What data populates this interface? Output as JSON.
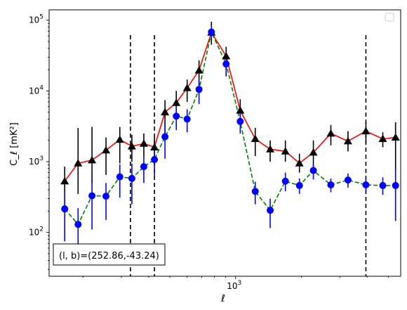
{
  "chart_data": {
    "type": "scatter",
    "title": "",
    "xlabel": "ℓ",
    "ylabel": "C_ℓ  [mK²]",
    "xscale": "log",
    "yscale": "log",
    "xlim": [
      140,
      5700
    ],
    "ylim": [
      24,
      140000
    ],
    "x_ticks": [
      {
        "value": 1000,
        "base": "10",
        "exp": "3"
      }
    ],
    "y_ticks": [
      {
        "value": 100,
        "base": "10",
        "exp": "2"
      },
      {
        "value": 1000,
        "base": "10",
        "exp": "3"
      },
      {
        "value": 10000,
        "base": "10",
        "exp": "4"
      },
      {
        "value": 100000,
        "base": "10",
        "exp": "5"
      }
    ],
    "vlines": [
      330,
      425,
      3950
    ],
    "annotation": "(l, b)=(252.86,-43.24)",
    "legend": {
      "placement": "top-right",
      "entries": []
    },
    "grid": false,
    "series": [
      {
        "color": "#000000",
        "line_color": "#ff0000",
        "line_style": "solid",
        "marker": "triangle",
        "points": [
          {
            "x": 165,
            "y": 530,
            "lo": 210,
            "hi": 850
          },
          {
            "x": 190,
            "y": 950,
            "lo": 350,
            "hi": 3000
          },
          {
            "x": 220,
            "y": 1050,
            "lo": 500,
            "hi": 3100
          },
          {
            "x": 255,
            "y": 1450,
            "lo": 650,
            "hi": 2200
          },
          {
            "x": 295,
            "y": 2050,
            "lo": 950,
            "hi": 3100
          },
          {
            "x": 335,
            "y": 1650,
            "lo": 1000,
            "hi": 2400
          },
          {
            "x": 380,
            "y": 1800,
            "lo": 1200,
            "hi": 2500
          },
          {
            "x": 425,
            "y": 1600,
            "lo": 900,
            "hi": 2200
          },
          {
            "x": 475,
            "y": 5000,
            "lo": 2500,
            "hi": 7400
          },
          {
            "x": 535,
            "y": 6800,
            "lo": 4000,
            "hi": 10000
          },
          {
            "x": 600,
            "y": 11000,
            "lo": 7000,
            "hi": 14500
          },
          {
            "x": 680,
            "y": 19500,
            "lo": 12000,
            "hi": 27000
          },
          {
            "x": 775,
            "y": 67000,
            "lo": 45000,
            "hi": 95000
          },
          {
            "x": 905,
            "y": 31000,
            "lo": 20000,
            "hi": 42000
          },
          {
            "x": 1050,
            "y": 5300,
            "lo": 3300,
            "hi": 7600
          },
          {
            "x": 1230,
            "y": 2100,
            "lo": 1200,
            "hi": 3000
          },
          {
            "x": 1440,
            "y": 1500,
            "lo": 1000,
            "hi": 2000
          },
          {
            "x": 1690,
            "y": 1400,
            "lo": 1000,
            "hi": 2000
          },
          {
            "x": 1960,
            "y": 950,
            "lo": 700,
            "hi": 1300
          },
          {
            "x": 2270,
            "y": 1350,
            "lo": 800,
            "hi": 2000
          },
          {
            "x": 2730,
            "y": 2500,
            "lo": 1700,
            "hi": 3300
          },
          {
            "x": 3270,
            "y": 1950,
            "lo": 1400,
            "hi": 2700
          },
          {
            "x": 3950,
            "y": 2700,
            "lo": 1800,
            "hi": 3600
          },
          {
            "x": 4720,
            "y": 2100,
            "lo": 1600,
            "hi": 2600
          },
          {
            "x": 5400,
            "y": 2200,
            "lo": 750,
            "hi": 3600
          }
        ]
      },
      {
        "color": "#0000ff",
        "line_color": "#008000",
        "line_style": "dashed",
        "marker": "circle",
        "points": [
          {
            "x": 165,
            "y": 215,
            "lo": 75,
            "hi": 380
          },
          {
            "x": 190,
            "y": 130,
            "lo": 40,
            "hi": 220
          },
          {
            "x": 220,
            "y": 330,
            "lo": 110,
            "hi": 560
          },
          {
            "x": 255,
            "y": 325,
            "lo": 150,
            "hi": 500
          },
          {
            "x": 295,
            "y": 610,
            "lo": 310,
            "hi": 920
          },
          {
            "x": 335,
            "y": 580,
            "lo": 250,
            "hi": 940
          },
          {
            "x": 380,
            "y": 850,
            "lo": 500,
            "hi": 1200
          },
          {
            "x": 425,
            "y": 1070,
            "lo": 620,
            "hi": 1520
          },
          {
            "x": 475,
            "y": 2250,
            "lo": 1100,
            "hi": 3400
          },
          {
            "x": 535,
            "y": 4400,
            "lo": 2800,
            "hi": 6000
          },
          {
            "x": 600,
            "y": 4000,
            "lo": 2600,
            "hi": 5500
          },
          {
            "x": 680,
            "y": 10500,
            "lo": 6500,
            "hi": 14500
          },
          {
            "x": 775,
            "y": 68000,
            "lo": 55000,
            "hi": 82000
          },
          {
            "x": 905,
            "y": 24000,
            "lo": 16000,
            "hi": 32000
          },
          {
            "x": 1050,
            "y": 3700,
            "lo": 2500,
            "hi": 5000
          },
          {
            "x": 1230,
            "y": 380,
            "lo": 250,
            "hi": 520
          },
          {
            "x": 1440,
            "y": 205,
            "lo": 115,
            "hi": 300
          },
          {
            "x": 1690,
            "y": 530,
            "lo": 380,
            "hi": 700
          },
          {
            "x": 1960,
            "y": 460,
            "lo": 350,
            "hi": 580
          },
          {
            "x": 2270,
            "y": 750,
            "lo": 560,
            "hi": 950
          },
          {
            "x": 2730,
            "y": 470,
            "lo": 370,
            "hi": 580
          },
          {
            "x": 3270,
            "y": 550,
            "lo": 430,
            "hi": 680
          },
          {
            "x": 3950,
            "y": 470,
            "lo": 370,
            "hi": 580
          },
          {
            "x": 4720,
            "y": 460,
            "lo": 340,
            "hi": 600
          },
          {
            "x": 5400,
            "y": 460,
            "lo": 145,
            "hi": 780
          }
        ]
      }
    ]
  }
}
